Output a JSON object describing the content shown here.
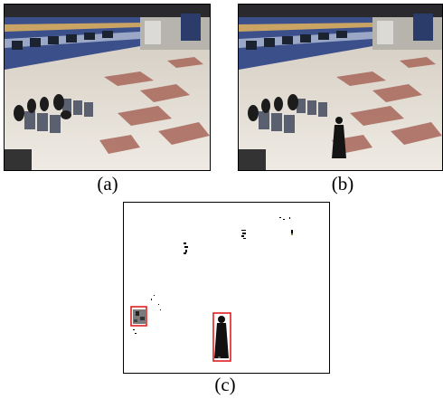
{
  "figure": {
    "panels": [
      {
        "caption": "(a)",
        "content": "station-platform-background"
      },
      {
        "caption": "(b)",
        "content": "station-platform-with-person"
      },
      {
        "caption": "(c)",
        "content": "foreground-detection-mask"
      }
    ],
    "colors": {
      "train_body": "#3b4f8a",
      "train_stripe": "#c9a463",
      "floor": "#e9e4dc",
      "floor_tile_pattern": "#a8675a",
      "detection_box": "#e02020",
      "mask_background": "#ffffff"
    }
  }
}
